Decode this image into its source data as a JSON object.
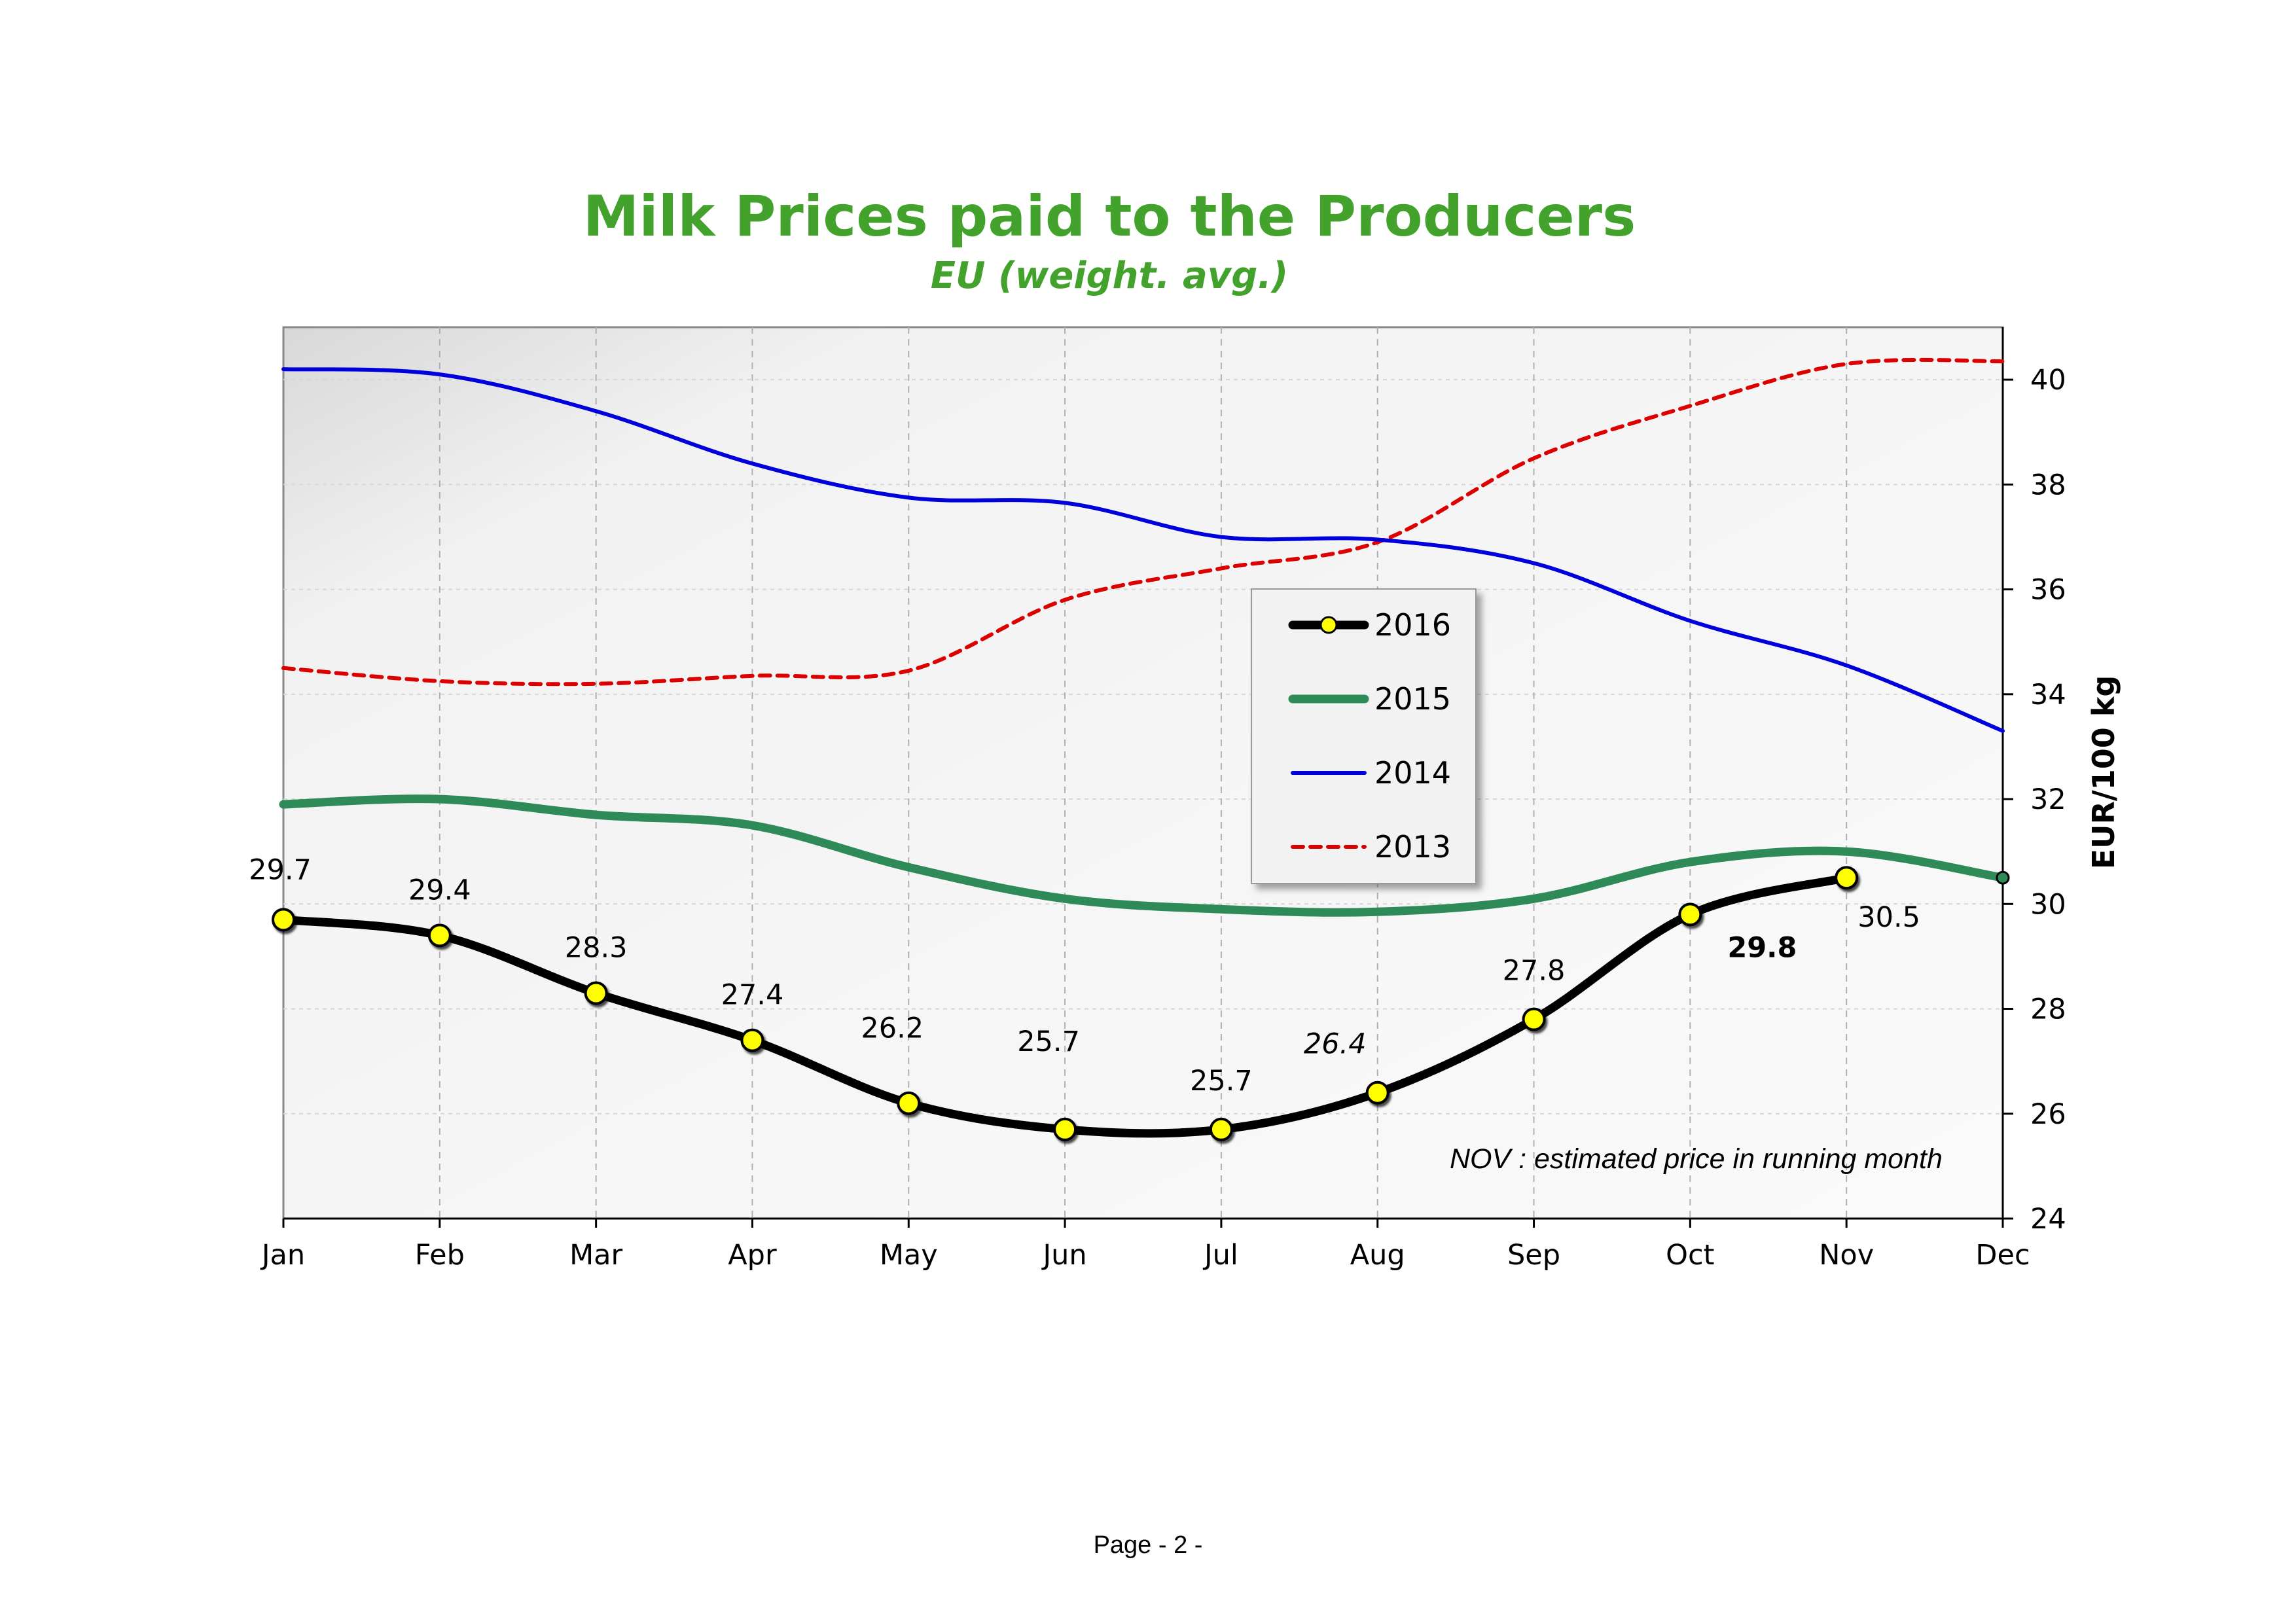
{
  "chart_data": {
    "type": "line",
    "title": "Milk Prices paid to the Producers",
    "subtitle": "EU (weight. avg.)",
    "xlabel": "",
    "ylabel": "EUR/100 kg",
    "categories": [
      "Jan",
      "Feb",
      "Mar",
      "Apr",
      "May",
      "Jun",
      "Jul",
      "Aug",
      "Sep",
      "Oct",
      "Nov",
      "Dec"
    ],
    "ylim": [
      24,
      41
    ],
    "yticks": [
      24,
      26,
      28,
      30,
      32,
      34,
      36,
      38,
      40
    ],
    "y_axis_side": "right",
    "grid": true,
    "legend_position": "center-right",
    "series": [
      {
        "name": "2016",
        "color": "#000000",
        "marker_color": "#ffff00",
        "style": "solid-thick-markers",
        "values": [
          29.7,
          29.4,
          28.3,
          27.4,
          26.2,
          25.7,
          25.7,
          26.4,
          27.8,
          29.8,
          30.5,
          null
        ],
        "data_labels": [
          "29.7",
          "29.4",
          "28.3",
          "27.4",
          "26.2",
          "25.7",
          "25.7",
          "26.4",
          "27.8",
          "29.8",
          "30.5",
          ""
        ]
      },
      {
        "name": "2015",
        "color": "#2e8b57",
        "style": "solid-thick",
        "values": [
          31.9,
          32.0,
          31.7,
          31.5,
          30.7,
          30.1,
          29.9,
          29.85,
          30.1,
          30.8,
          31.0,
          30.5
        ]
      },
      {
        "name": "2014",
        "color": "#0000dd",
        "style": "solid",
        "values": [
          40.2,
          40.1,
          39.4,
          38.4,
          37.75,
          37.65,
          37.0,
          36.95,
          36.5,
          35.4,
          34.55,
          33.3
        ]
      },
      {
        "name": "2013",
        "color": "#dd0000",
        "style": "dashed",
        "values": [
          34.5,
          34.25,
          34.2,
          34.35,
          34.45,
          35.8,
          36.4,
          36.9,
          38.5,
          39.5,
          40.3,
          40.35
        ]
      }
    ],
    "annotation": "NOV :  estimated price in running month"
  },
  "footer": {
    "page_label": "Page - 2 -"
  }
}
